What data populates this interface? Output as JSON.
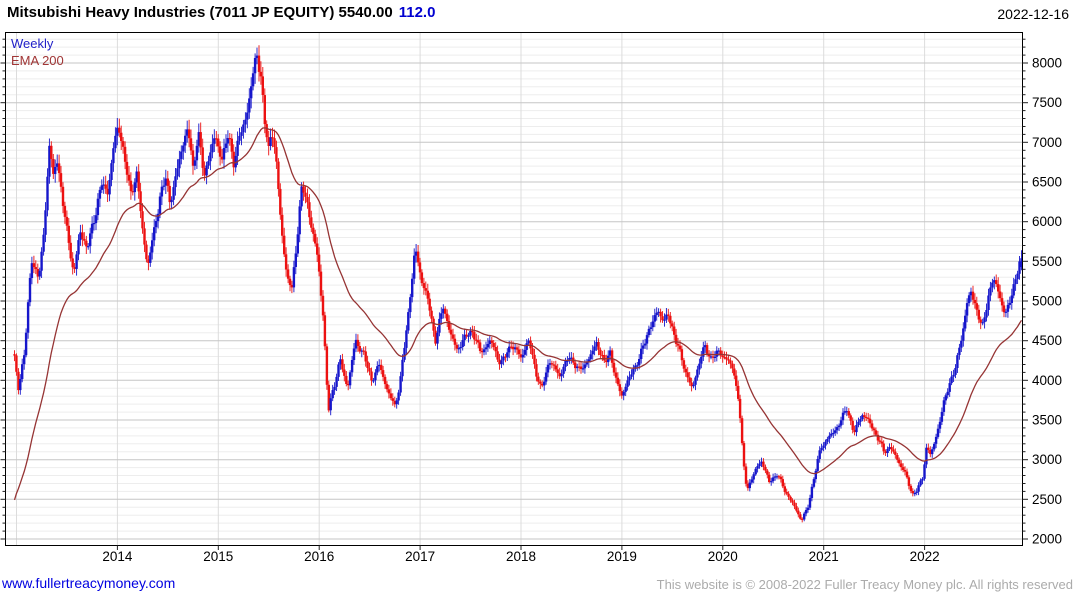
{
  "header": {
    "title": "Mitsubishi Heavy Industries (7011 JP EQUITY) 5540.00",
    "change": "112.0",
    "date": "2022-12-16"
  },
  "legend": {
    "series": "Weekly",
    "overlay": "EMA 200"
  },
  "footer": {
    "link": "www.fullertreacymoney.com",
    "copyright": "This website is © 2008-2022 Fuller Treacy Money plc. All rights reserved"
  },
  "colors": {
    "up": "#1616cb",
    "down": "#ec1111",
    "ema": "#963434",
    "grid_major": "#c6c6c6",
    "grid_minor": "#ededed",
    "grid_vert": "#dcdcdc",
    "border": "#000000",
    "tick": "#222222",
    "label": "#000000",
    "change_text": "#0000d0",
    "link_text": "#0000e0",
    "copyright_text": "#ababab"
  },
  "chart_data": {
    "type": "candlestick",
    "interval": "weekly",
    "title": "Mitsubishi Heavy Industries (7011 JP EQUITY)",
    "legend": [
      "Weekly",
      "EMA 200"
    ],
    "legend_position": "top-left",
    "grid": true,
    "y_axis": {
      "min": 2000,
      "max": 8000,
      "major_step": 500,
      "minor_step": 100,
      "side": "right",
      "tick_labels": [
        8000,
        7500,
        7000,
        6500,
        6000,
        5500,
        5000,
        4500,
        4000,
        3500,
        3000,
        2500,
        2000
      ]
    },
    "x_axis": {
      "tick_labels": [
        2014,
        2015,
        2016,
        2017,
        2018,
        2019,
        2020,
        2021,
        2022
      ],
      "gridline_years": [
        2013,
        2014,
        2015,
        2016,
        2017,
        2018,
        2019,
        2020,
        2021,
        2022
      ],
      "start": 2012.98,
      "end": 2022.96
    },
    "last": {
      "date": "2022-12-16",
      "close": 5540.0,
      "change": 112.0,
      "high": 5640
    },
    "ema": {
      "label": "EMA 200",
      "period_weeks": 40,
      "seed": 2400
    },
    "weeks": 520,
    "anchors": [
      [
        2012.98,
        4280
      ],
      [
        2013.02,
        3900
      ],
      [
        2013.08,
        4350
      ],
      [
        2013.15,
        5550
      ],
      [
        2013.22,
        5250
      ],
      [
        2013.28,
        6000
      ],
      [
        2013.33,
        7050
      ],
      [
        2013.36,
        6500
      ],
      [
        2013.4,
        6850
      ],
      [
        2013.45,
        6300
      ],
      [
        2013.5,
        5900
      ],
      [
        2013.57,
        5320
      ],
      [
        2013.63,
        5900
      ],
      [
        2013.7,
        5650
      ],
      [
        2013.78,
        6100
      ],
      [
        2013.85,
        6500
      ],
      [
        2013.9,
        6350
      ],
      [
        2013.96,
        6900
      ],
      [
        2014.01,
        7250
      ],
      [
        2014.07,
        6800
      ],
      [
        2014.13,
        6350
      ],
      [
        2014.19,
        6600
      ],
      [
        2014.25,
        5900
      ],
      [
        2014.3,
        5430
      ],
      [
        2014.36,
        5850
      ],
      [
        2014.42,
        6300
      ],
      [
        2014.48,
        6550
      ],
      [
        2014.52,
        6250
      ],
      [
        2014.58,
        6550
      ],
      [
        2014.64,
        6950
      ],
      [
        2014.7,
        7180
      ],
      [
        2014.75,
        6650
      ],
      [
        2014.8,
        7150
      ],
      [
        2014.86,
        6550
      ],
      [
        2014.92,
        6900
      ],
      [
        2014.97,
        7050
      ],
      [
        2015.04,
        6800
      ],
      [
        2015.1,
        7100
      ],
      [
        2015.15,
        6750
      ],
      [
        2015.22,
        7100
      ],
      [
        2015.28,
        7350
      ],
      [
        2015.34,
        7800
      ],
      [
        2015.38,
        8150
      ],
      [
        2015.42,
        7850
      ],
      [
        2015.46,
        7250
      ],
      [
        2015.5,
        6900
      ],
      [
        2015.53,
        7200
      ],
      [
        2015.57,
        6800
      ],
      [
        2015.62,
        6000
      ],
      [
        2015.68,
        5300
      ],
      [
        2015.73,
        5150
      ],
      [
        2015.78,
        5800
      ],
      [
        2015.83,
        6450
      ],
      [
        2015.88,
        6250
      ],
      [
        2015.93,
        5900
      ],
      [
        2015.99,
        5500
      ],
      [
        2016.04,
        4800
      ],
      [
        2016.09,
        3600
      ],
      [
        2016.13,
        3850
      ],
      [
        2016.21,
        4250
      ],
      [
        2016.28,
        3900
      ],
      [
        2016.36,
        4500
      ],
      [
        2016.44,
        4330
      ],
      [
        2016.52,
        4000
      ],
      [
        2016.6,
        4200
      ],
      [
        2016.68,
        3850
      ],
      [
        2016.75,
        3680
      ],
      [
        2016.8,
        3950
      ],
      [
        2016.88,
        4800
      ],
      [
        2016.95,
        5650
      ],
      [
        2017.02,
        5250
      ],
      [
        2017.08,
        5000
      ],
      [
        2017.15,
        4500
      ],
      [
        2017.23,
        4930
      ],
      [
        2017.3,
        4600
      ],
      [
        2017.36,
        4380
      ],
      [
        2017.45,
        4550
      ],
      [
        2017.52,
        4620
      ],
      [
        2017.6,
        4350
      ],
      [
        2017.7,
        4500
      ],
      [
        2017.8,
        4200
      ],
      [
        2017.9,
        4450
      ],
      [
        2018.0,
        4300
      ],
      [
        2018.08,
        4500
      ],
      [
        2018.16,
        4050
      ],
      [
        2018.2,
        3870
      ],
      [
        2018.28,
        4250
      ],
      [
        2018.38,
        4060
      ],
      [
        2018.48,
        4300
      ],
      [
        2018.58,
        4120
      ],
      [
        2018.68,
        4280
      ],
      [
        2018.75,
        4480
      ],
      [
        2018.83,
        4200
      ],
      [
        2018.88,
        4380
      ],
      [
        2018.95,
        3950
      ],
      [
        2019.0,
        3820
      ],
      [
        2019.1,
        4100
      ],
      [
        2019.18,
        4300
      ],
      [
        2019.26,
        4620
      ],
      [
        2019.36,
        4880
      ],
      [
        2019.42,
        4750
      ],
      [
        2019.46,
        4820
      ],
      [
        2019.55,
        4450
      ],
      [
        2019.62,
        4150
      ],
      [
        2019.7,
        3880
      ],
      [
        2019.78,
        4300
      ],
      [
        2019.82,
        4420
      ],
      [
        2019.88,
        4280
      ],
      [
        2019.95,
        4350
      ],
      [
        2020.02,
        4300
      ],
      [
        2020.1,
        4150
      ],
      [
        2020.16,
        3750
      ],
      [
        2020.2,
        3000
      ],
      [
        2020.24,
        2620
      ],
      [
        2020.3,
        2800
      ],
      [
        2020.38,
        3000
      ],
      [
        2020.46,
        2720
      ],
      [
        2020.54,
        2820
      ],
      [
        2020.62,
        2600
      ],
      [
        2020.7,
        2430
      ],
      [
        2020.78,
        2240
      ],
      [
        2020.84,
        2380
      ],
      [
        2020.9,
        2750
      ],
      [
        2020.97,
        3150
      ],
      [
        2021.05,
        3280
      ],
      [
        2021.12,
        3380
      ],
      [
        2021.18,
        3520
      ],
      [
        2021.23,
        3650
      ],
      [
        2021.3,
        3330
      ],
      [
        2021.38,
        3580
      ],
      [
        2021.46,
        3460
      ],
      [
        2021.54,
        3260
      ],
      [
        2021.6,
        3100
      ],
      [
        2021.66,
        3160
      ],
      [
        2021.74,
        2980
      ],
      [
        2021.8,
        2850
      ],
      [
        2021.88,
        2560
      ],
      [
        2021.93,
        2620
      ],
      [
        2021.98,
        2780
      ],
      [
        2022.02,
        3170
      ],
      [
        2022.06,
        3050
      ],
      [
        2022.12,
        3320
      ],
      [
        2022.18,
        3650
      ],
      [
        2022.24,
        3950
      ],
      [
        2022.3,
        4120
      ],
      [
        2022.36,
        4500
      ],
      [
        2022.42,
        4950
      ],
      [
        2022.46,
        5120
      ],
      [
        2022.52,
        4880
      ],
      [
        2022.57,
        4640
      ],
      [
        2022.63,
        5050
      ],
      [
        2022.68,
        5280
      ],
      [
        2022.74,
        5100
      ],
      [
        2022.8,
        4800
      ],
      [
        2022.86,
        5080
      ],
      [
        2022.91,
        5320
      ],
      [
        2022.96,
        5540
      ]
    ]
  }
}
